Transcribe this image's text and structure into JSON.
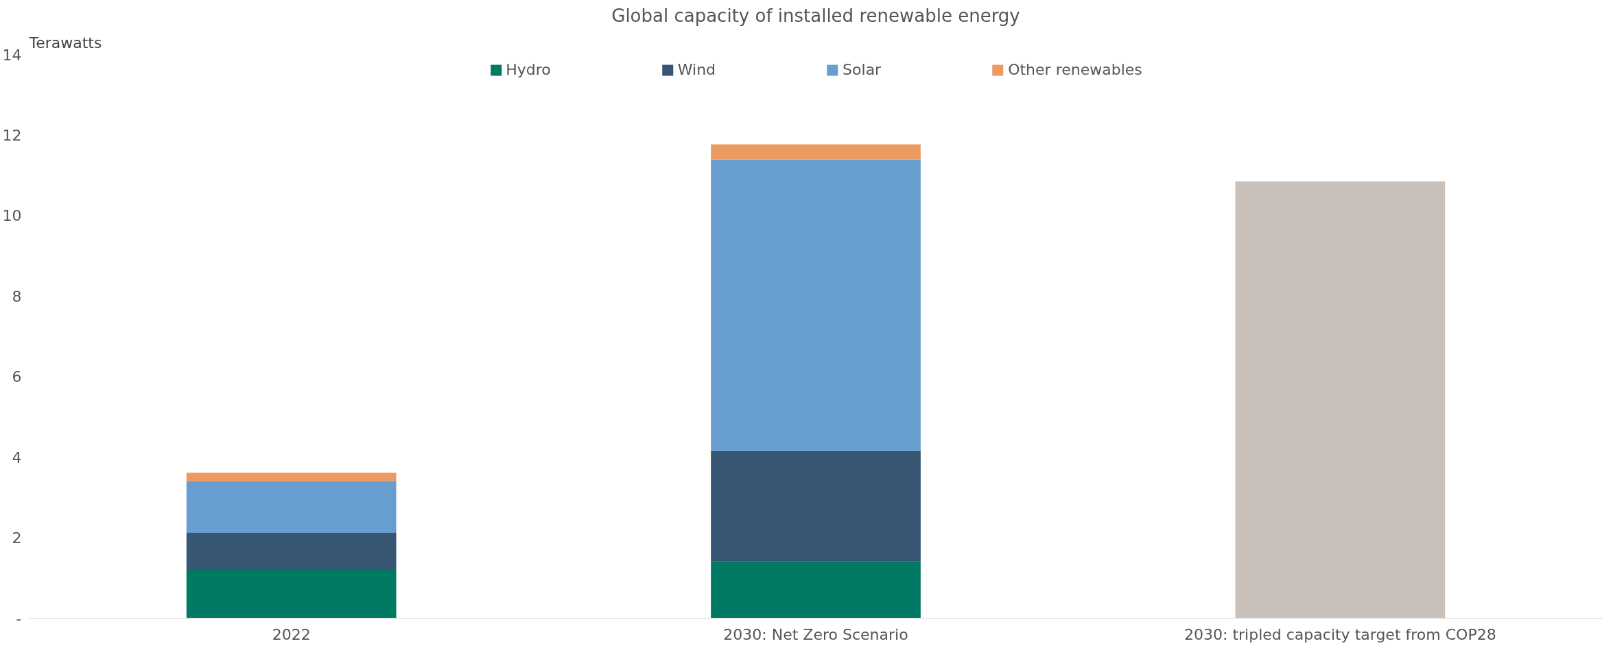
{
  "chart_data": {
    "type": "bar",
    "title": "Global capacity of installed renewable energy",
    "ylabel": "Terawatts",
    "categories": [
      "2022",
      "2030: Net Zero Scenario",
      "2030: tripled capacity target from COP28"
    ],
    "stacked": true,
    "series": [
      {
        "name": "Hydro",
        "color": "#007a63",
        "values": [
          1.2,
          1.41,
          null
        ]
      },
      {
        "name": "Wind",
        "color": "#365673",
        "values": [
          0.92,
          2.74,
          null
        ]
      },
      {
        "name": "Solar",
        "color": "#689ecf",
        "values": [
          1.28,
          7.24,
          null
        ]
      },
      {
        "name": "Other renewables",
        "color": "#eb9a62",
        "values": [
          0.21,
          0.38,
          null
        ]
      },
      {
        "color": "#c9c1b9",
        "values": [
          null,
          null,
          10.85
        ]
      }
    ],
    "ylim": [
      0,
      14
    ],
    "yticks": [
      {
        "value": 0,
        "label": "-"
      },
      2,
      4,
      6,
      8,
      10,
      12,
      14
    ],
    "grid": false,
    "legend": "top"
  }
}
